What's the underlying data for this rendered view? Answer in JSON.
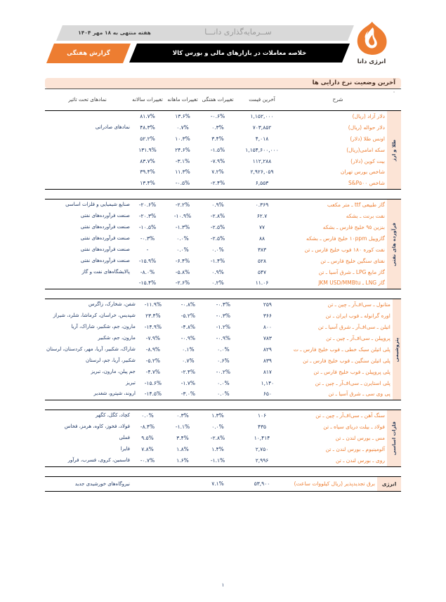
{
  "header": {
    "logo_text": "انرژی دانا",
    "company_name": "ســرمایه‌گذاری دانـــا",
    "week_label": "هفته منتهی به ۱۸ مهر ۱۴۰۴",
    "banner_title": "خلاصه معاملات در بازارهای مالی و بورس کالا",
    "report_type": "گزارش هفتگی"
  },
  "section": {
    "title": "آخرین وضعیت نرخ دارایی ها"
  },
  "table": {
    "corner_dot": "·",
    "columns": [
      "شرح",
      "آخرین قیمت",
      "تغییرات هفتگی",
      "تغییرات ماهانه",
      "تغییرات سالانه",
      "نمادهای تحت تاثیر"
    ],
    "groups": [
      {
        "label": "طلا و ارز",
        "rows": [
          {
            "desc": "دلار آزاد (ریال)",
            "price": "۱,۱۵۲,۰۰۰",
            "weekly": "-۰.۶%",
            "monthly": "۱۳.۶%",
            "annual": "۸۱.۷%",
            "symbols": ""
          },
          {
            "desc": "دلار حواله (ریال)",
            "price": "۷۰۳,۸۵۲",
            "weekly": "۰.۳%",
            "monthly": "۰.۷%",
            "annual": "۴۸.۳%",
            "symbols": "نمادهای صادراتی"
          },
          {
            "desc": "اونس طلا (دلار)",
            "price": "۴,۰۱۸",
            "weekly": "۳.۴%",
            "monthly": "۱۰.۳%",
            "annual": "۵۲.۲%",
            "symbols": ""
          },
          {
            "desc": "سکه امامی(ریال)",
            "price": "۱,۱۵۴,۶۰۰,۰۰۰",
            "weekly": "-۱.۵%",
            "monthly": "۲۴.۶%",
            "annual": "۱۳۱.۹%",
            "symbols": ""
          },
          {
            "desc": "بیت کوین (دلار)",
            "price": "۱۱۲,۲۸۸",
            "weekly": "-۷.۹%",
            "monthly": "-۳.۱%",
            "annual": "۸۳.۷%",
            "symbols": ""
          },
          {
            "desc": "شاخص بورس تهران",
            "price": "۲,۹۲۶,۰۵۹",
            "weekly": "۷.۲%",
            "monthly": "۱۱.۳%",
            "annual": "۳۹.۴%",
            "symbols": ""
          },
          {
            "desc": "شاخص S&P۵۰۰",
            "price": "۶,۵۵۳",
            "weekly": "-۲.۴%",
            "monthly": "-۰.۵%",
            "annual": "۱۳.۴%",
            "symbols": ""
          }
        ]
      },
      {
        "label": "فرآورده های نفتی",
        "rows": [
          {
            "desc": "گاز طبیعی ttf ـ متر مکعب",
            "price": "۰.۳۶۹",
            "weekly": "۰.۹%",
            "monthly": "-۲.۲%",
            "annual": "-۲۰.۶%",
            "symbols": "صنایع شیمیایی و فلزات اساسی"
          },
          {
            "desc": "نفت برنت ـ بشکه",
            "price": "۶۲.۷",
            "weekly": "-۲.۸%",
            "monthly": "-۱۰.۹%",
            "annual": "-۲۰.۳%",
            "symbols": "صنعت فرآورده‌های نفتی"
          },
          {
            "desc": "بنزین ۹۵ خلیج فارس ـ بشکه",
            "price": "۷۷",
            "weekly": "-۲.۵%",
            "monthly": "-۱.۳%",
            "annual": "-۱۰.۵%",
            "symbols": "صنعت فرآورده‌های نفتی"
          },
          {
            "desc": "گازوییل ۱۰ppm خلیج فارس ـ بشکه",
            "price": "۸۸",
            "weekly": "-۲.۵%",
            "monthly": "۰.۰%",
            "annual": "-۰.۳%",
            "symbols": "صنعت فرآورده‌های نفتی"
          },
          {
            "desc": "نفت کوره ۱۸۰ فوب خلیج فارس ـ تن",
            "price": "۳۸۳",
            "weekly": "۰.۰%",
            "monthly": "۰.۰%",
            "annual": "-",
            "symbols": "صنعت فرآورده‌های نفتی"
          },
          {
            "desc": "نفتای سنگین خلیج فارس ـ تن",
            "price": "۵۲۸",
            "weekly": "-۱.۴%",
            "monthly": "-۶.۴%",
            "annual": "-۱۵.۹%",
            "symbols": "صنعت فرآورده‌های نفتی"
          },
          {
            "desc": "گاز مایع LPG ـ شرق آسیا ـ تن",
            "price": "۵۴۷",
            "weekly": "۰.۹%",
            "monthly": "-۵.۸%",
            "annual": "-۸.۰%",
            "symbols": "پالایشگاه‌های نفت و گاز"
          },
          {
            "desc": "گاز LNG ـ JKM USD/MMBtu",
            "price": "۱۱.۰۶",
            "weekly": "۰.۲%",
            "monthly": "-۲.۶%",
            "annual": "-۱۵.۴%",
            "symbols": ""
          }
        ]
      },
      {
        "label": "پتروشیمی",
        "rows": [
          {
            "desc": "متانول ـ سی‌اف‌آر ـ چین ـ تن",
            "price": "۲۵۹",
            "weekly": "-۰.۴%",
            "monthly": "-۰.۸%",
            "annual": "-۱۱.۹%",
            "symbols": "شفن، شخارک، زاگرس"
          },
          {
            "desc": "اوره گرانوله ـ فوب ایران ـ تن",
            "price": "۳۶۶",
            "weekly": "-۰.۳%",
            "monthly": "-۵.۲%",
            "annual": "۲۳.۴%",
            "symbols": "شپدیس، خراسان، کرماشا، شلرد، شیراز"
          },
          {
            "desc": "اتیلن ـ سی‌اف‌آر ـ شرق آسیا ـ تن",
            "price": "۸۰۰",
            "weekly": "-۱.۲%",
            "monthly": "-۴.۸%",
            "annual": "-۱۴.۹%",
            "symbols": "مارون، جم، شکبیر، شاراک، آریا"
          },
          {
            "desc": "پروپیلن ـ سی‌اف‌آر ـ چین ـ تن",
            "price": "۷۸۳",
            "weekly": "-۰.۹%",
            "monthly": "-۰.۹%",
            "annual": "-۷.۹%",
            "symbols": "مارون، جم، شکبیر"
          },
          {
            "desc": "پلی اتیلن سبک خطی ـ فوب خلیج فارس ـ ت",
            "price": "۸۲۹",
            "weekly": "۰.۰%",
            "monthly": "۰.۱%",
            "annual": "-۸.۹%",
            "symbols": "شاراک، شکبیر، آریا، مهر، کردستان، لرستان"
          },
          {
            "desc": "پلی اتیلن سنگین ـ فوب خلیج فارس ـ تن",
            "price": "۸۳۹",
            "weekly": "۰.۶%",
            "monthly": "۰.۷%",
            "annual": "-۵.۲%",
            "symbols": "شکبیر، آریا، جم، لرستان"
          },
          {
            "desc": "پلی پروپیلن ـ فوب خلیج فارس ـ تن",
            "price": "۸۱۷",
            "weekly": "-۰.۲%",
            "monthly": "-۲.۴%",
            "annual": "-۴.۷%",
            "symbols": "جم پیلن، مارون، تبریز"
          },
          {
            "desc": "پلی استایرن ـ سی‌اف‌آر ـ چین ـ تن",
            "price": "۱,۱۴۰",
            "weekly": "۰.۰%",
            "monthly": "-۱.۷%",
            "annual": "-۱۵.۶%",
            "symbols": "تبریز"
          },
          {
            "desc": "پی وی سی ـ شرق آسیا ـ تن",
            "price": "۶۵۰",
            "weekly": "۰.۰%",
            "monthly": "-۳.۰%",
            "annual": "-۱۴.۵%",
            "symbols": "اروند، شپترو، شغدیر"
          }
        ]
      },
      {
        "label": "فلزات اساسی",
        "rows": [
          {
            "desc": "سنگ آهن ـ سی‌اف‌آر ـ چین ـ تن",
            "price": "۱۰۶",
            "weekly": "۱.۳%",
            "monthly": "۰.۳%",
            "annual": "۰.۰%",
            "symbols": "کچاد، کگل، کگهر"
          },
          {
            "desc": "فولاد ـ بیلت دریای سیاه ـ تن",
            "price": "۴۳۵",
            "weekly": "۰.۰%",
            "monthly": "-۱.۱%",
            "annual": "-۸.۴%",
            "symbols": "فولاد، فخوز، کاوه، هرمز، فخاس"
          },
          {
            "desc": "مس ـ بورس لندن ـ تن",
            "price": "۱۰,۴۱۴",
            "weekly": "-۲.۸%",
            "monthly": "۳.۴%",
            "annual": "۹.۵%",
            "symbols": "فملی"
          },
          {
            "desc": "آلومینیوم ـ بورس لندن ـ تن",
            "price": "۲,۷۵۰",
            "weekly": "۱.۴%",
            "monthly": "۱.۸%",
            "annual": "۷.۸%",
            "symbols": "فایرا"
          },
          {
            "desc": "روی ـ بورس لندن ـ تن",
            "price": "۲,۹۹۶",
            "weekly": "-۱.۱%",
            "monthly": "۱.۶%",
            "annual": "-۰.۷%",
            "symbols": "فاسمین، کروی، فسرب، فرآور"
          }
        ]
      },
      {
        "label": "انرژی",
        "horizontal": true,
        "rows": [
          {
            "desc": "برق تجدیدپذیر (ریال کیلووات ساعت)",
            "price": "۵۳,۹۰۰",
            "weekly": "۷.۱%",
            "monthly": "",
            "annual": "",
            "symbols": "نیروگاه‌های خورشیدی جدید"
          }
        ]
      }
    ]
  },
  "footer": {
    "page_number": "۱"
  },
  "colors": {
    "accent_orange": "#ED7D31",
    "band_peach": "#FCE4D6",
    "number_navy": "#1F3864",
    "banner_black": "#000000",
    "header_gray": "#D9D9D9"
  }
}
